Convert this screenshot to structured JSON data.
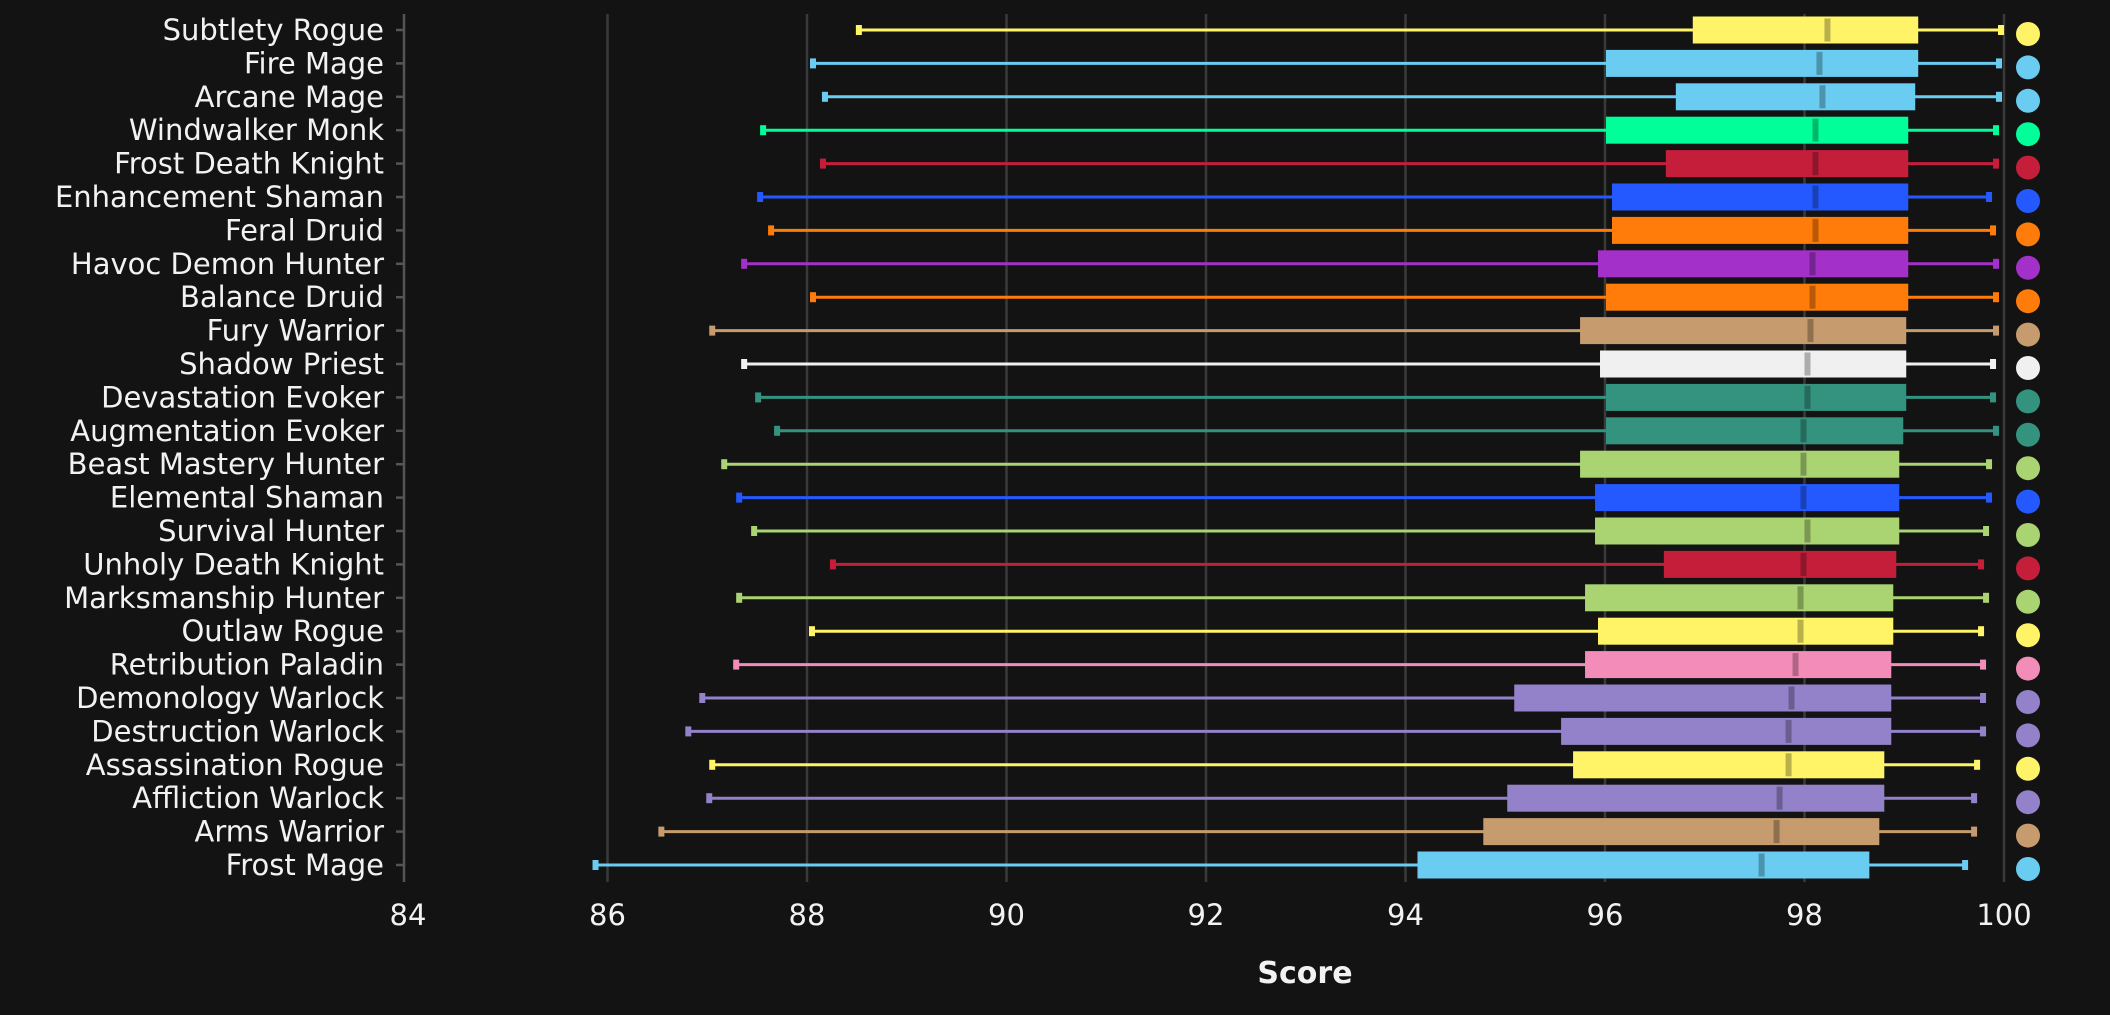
{
  "chart_data": {
    "type": "box",
    "title": "",
    "xlabel": "Score",
    "ylabel": "",
    "xlim": [
      84,
      100
    ],
    "xticks": [
      "84",
      "86",
      "88",
      "90",
      "92",
      "94",
      "96",
      "98",
      "100"
    ],
    "grid": true,
    "legend": "none",
    "series": [
      {
        "name": "Subtlety Rogue",
        "color": "#fff468",
        "min": 88.52,
        "q1": 96.88,
        "median": 98.23,
        "q3": 99.14,
        "max": 99.97
      },
      {
        "name": "Fire Mage",
        "color": "#69ccf0",
        "min": 88.06,
        "q1": 96.01,
        "median": 98.15,
        "q3": 99.14,
        "max": 99.95
      },
      {
        "name": "Arcane Mage",
        "color": "#69ccf0",
        "min": 88.18,
        "q1": 96.71,
        "median": 98.18,
        "q3": 99.11,
        "max": 99.95
      },
      {
        "name": "Windwalker Monk",
        "color": "#00ff98",
        "min": 87.56,
        "q1": 96.01,
        "median": 98.11,
        "q3": 99.04,
        "max": 99.92
      },
      {
        "name": "Frost Death Knight",
        "color": "#c41e3a",
        "min": 88.16,
        "q1": 96.61,
        "median": 98.11,
        "q3": 99.04,
        "max": 99.92
      },
      {
        "name": "Enhancement Shaman",
        "color": "#2459ff",
        "min": 87.53,
        "q1": 96.07,
        "median": 98.11,
        "q3": 99.04,
        "max": 99.85
      },
      {
        "name": "Feral Druid",
        "color": "#ff7c0a",
        "min": 87.64,
        "q1": 96.07,
        "median": 98.11,
        "q3": 99.04,
        "max": 99.89
      },
      {
        "name": "Havoc Demon Hunter",
        "color": "#a330c9",
        "min": 87.37,
        "q1": 95.93,
        "median": 98.08,
        "q3": 99.04,
        "max": 99.92
      },
      {
        "name": "Balance Druid",
        "color": "#ff7c0a",
        "min": 88.06,
        "q1": 96.01,
        "median": 98.08,
        "q3": 99.04,
        "max": 99.92
      },
      {
        "name": "Fury Warrior",
        "color": "#c69b6d",
        "min": 87.05,
        "q1": 95.75,
        "median": 98.06,
        "q3": 99.02,
        "max": 99.92
      },
      {
        "name": "Shadow Priest",
        "color": "#f0f0f0",
        "min": 87.37,
        "q1": 95.95,
        "median": 98.03,
        "q3": 99.02,
        "max": 99.89
      },
      {
        "name": "Devastation Evoker",
        "color": "#33937f",
        "min": 87.51,
        "q1": 96.01,
        "median": 98.03,
        "q3": 99.02,
        "max": 99.89
      },
      {
        "name": "Augmentation Evoker",
        "color": "#33937f",
        "min": 87.7,
        "q1": 96.01,
        "median": 97.99,
        "q3": 98.99,
        "max": 99.92
      },
      {
        "name": "Beast Mastery Hunter",
        "color": "#aad372",
        "min": 87.17,
        "q1": 95.75,
        "median": 97.99,
        "q3": 98.95,
        "max": 99.85
      },
      {
        "name": "Elemental Shaman",
        "color": "#2459ff",
        "min": 87.32,
        "q1": 95.9,
        "median": 97.99,
        "q3": 98.95,
        "max": 99.85
      },
      {
        "name": "Survival Hunter",
        "color": "#aad372",
        "min": 87.47,
        "q1": 95.9,
        "median": 98.03,
        "q3": 98.95,
        "max": 99.82
      },
      {
        "name": "Unholy Death Knight",
        "color": "#c41e3a",
        "min": 88.26,
        "q1": 96.59,
        "median": 97.99,
        "q3": 98.92,
        "max": 99.77
      },
      {
        "name": "Marksmanship Hunter",
        "color": "#aad372",
        "min": 87.32,
        "q1": 95.8,
        "median": 97.96,
        "q3": 98.89,
        "max": 99.82
      },
      {
        "name": "Outlaw Rogue",
        "color": "#fff468",
        "min": 88.05,
        "q1": 95.93,
        "median": 97.96,
        "q3": 98.89,
        "max": 99.77
      },
      {
        "name": "Retribution Paladin",
        "color": "#f48cba",
        "min": 87.29,
        "q1": 95.8,
        "median": 97.91,
        "q3": 98.87,
        "max": 99.79
      },
      {
        "name": "Demonology Warlock",
        "color": "#9382c9",
        "min": 86.95,
        "q1": 95.09,
        "median": 97.87,
        "q3": 98.87,
        "max": 99.79
      },
      {
        "name": "Destruction Warlock",
        "color": "#9382c9",
        "min": 86.81,
        "q1": 95.56,
        "median": 97.84,
        "q3": 98.87,
        "max": 99.79
      },
      {
        "name": "Assassination Rogue",
        "color": "#fff468",
        "min": 87.05,
        "q1": 95.68,
        "median": 97.84,
        "q3": 98.8,
        "max": 99.73
      },
      {
        "name": "Affliction Warlock",
        "color": "#9382c9",
        "min": 87.02,
        "q1": 95.02,
        "median": 97.75,
        "q3": 98.8,
        "max": 99.7
      },
      {
        "name": "Arms Warrior",
        "color": "#c69b6d",
        "min": 86.54,
        "q1": 94.78,
        "median": 97.72,
        "q3": 98.75,
        "max": 99.7
      },
      {
        "name": "Frost Mage",
        "color": "#69ccf0",
        "min": 85.88,
        "q1": 94.12,
        "median": 97.57,
        "q3": 98.65,
        "max": 99.61
      }
    ]
  }
}
